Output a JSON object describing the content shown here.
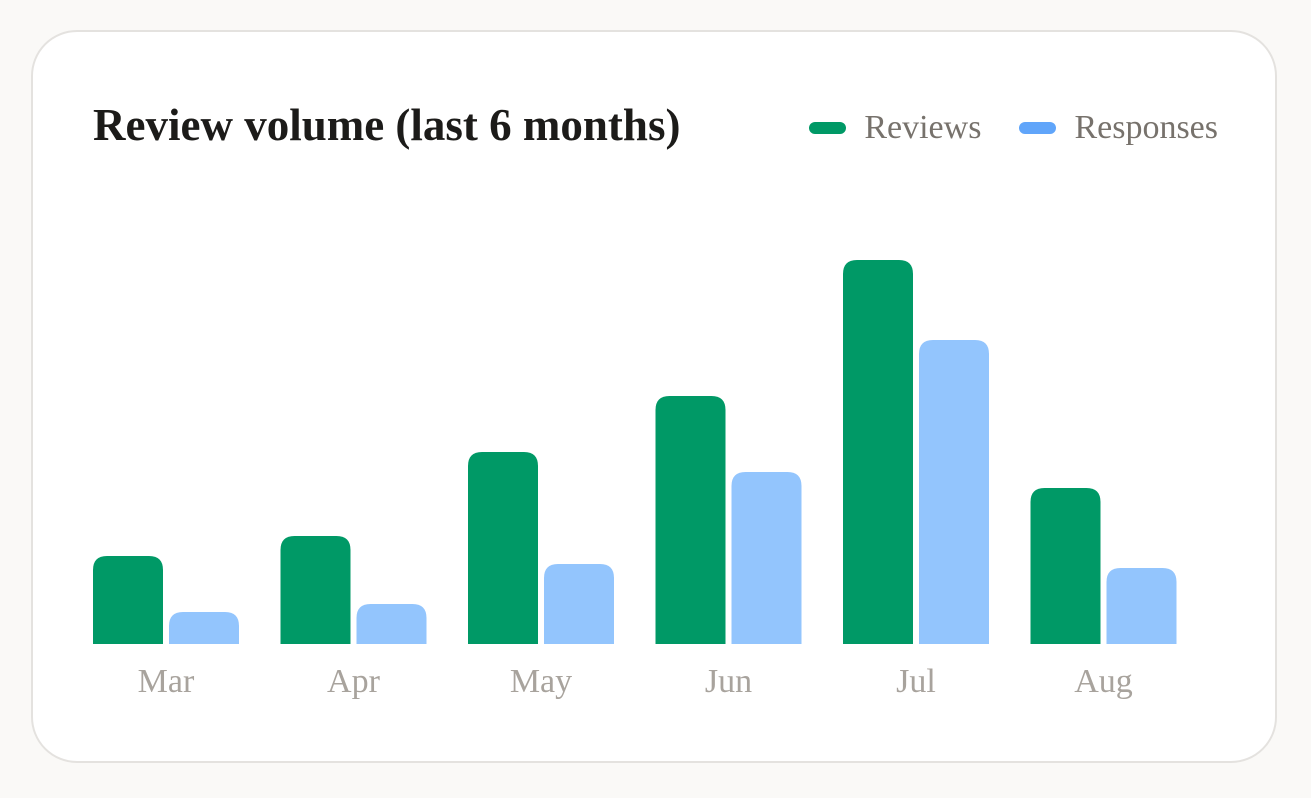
{
  "chart_data": {
    "type": "bar",
    "title": "Review volume (last 6 months)",
    "categories": [
      "Mar",
      "Apr",
      "May",
      "Jun",
      "Jul",
      "Aug"
    ],
    "series": [
      {
        "name": "Reviews",
        "color": "#009966",
        "values": [
          22,
          27,
          48,
          62,
          96,
          39
        ]
      },
      {
        "name": "Responses",
        "color": "#93c5fd",
        "swatch_color": "#60a5fa",
        "values": [
          8,
          10,
          20,
          43,
          76,
          19
        ]
      }
    ],
    "ylim": [
      0,
      100
    ],
    "grid": false,
    "legend": "top-right",
    "xlabel": "",
    "ylabel": ""
  }
}
